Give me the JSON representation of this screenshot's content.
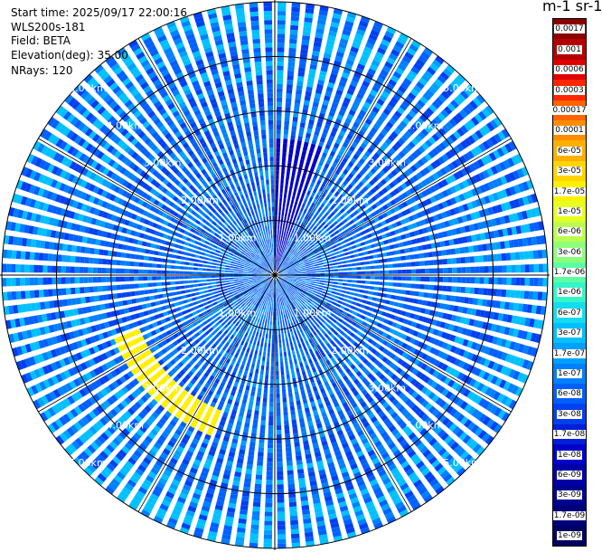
{
  "header": {
    "start_time": "Start time: 2025/09/17 22:00:16",
    "instrument": "WLS200s-181",
    "field": "Field: BETA",
    "elevation": "Elevation(deg): 35.00",
    "nrays": "NRays: 120"
  },
  "colorbar": {
    "title": "m-1 sr-1",
    "labels": [
      "0.0017",
      "0.001",
      "0.0006",
      "0.0003",
      "0.00017",
      "0.0001",
      "6e-05",
      "3e-05",
      "1.7e-05",
      "1e-05",
      "6e-06",
      "3e-06",
      "1.7e-06",
      "1e-06",
      "6e-07",
      "3e-07",
      "1.7e-07",
      "1e-07",
      "6e-08",
      "3e-08",
      "1.7e-08",
      "1e-08",
      "6e-09",
      "3e-09",
      "1.7e-09",
      "1e-09"
    ],
    "colors": [
      "#8a0000",
      "#b40000",
      "#e00000",
      "#ff2600",
      "#ff6400",
      "#ff8c00",
      "#ffb000",
      "#ffd400",
      "#fff000",
      "#e6ff20",
      "#baff50",
      "#8cff7a",
      "#5cffa2",
      "#34f5c8",
      "#14dcf0",
      "#00c0ff",
      "#00a0ff",
      "#0080ff",
      "#0060ff",
      "#0040f0",
      "#0020d8",
      "#0000c8",
      "#0000a8",
      "#000090",
      "#00007a",
      "#000060"
    ]
  },
  "chart_data": {
    "type": "heatmap",
    "projection": "polar-ppi",
    "nrays": 120,
    "range_rings_km": [
      1,
      2,
      3,
      4,
      5
    ],
    "max_range_km": 5.0,
    "ring_labels": [
      "1.00km",
      "2.00km",
      "3.00km",
      "4.00km",
      "5.00km"
    ],
    "spokes_deg": [
      0,
      30,
      60,
      90,
      120,
      150,
      180,
      210,
      240,
      270,
      300,
      330
    ],
    "colorbar_range": [
      1e-09,
      0.0017
    ],
    "colormap": "jet",
    "features": [
      {
        "description": "high backscatter arc",
        "azimuth_deg": [
          200,
          250
        ],
        "range_km": [
          2.7,
          3.2
        ],
        "value": 1.7e-05
      },
      {
        "description": "elevated near-range sector",
        "azimuth_deg": [
          0,
          20
        ],
        "range_km": [
          0.1,
          2.5
        ],
        "value": 1e-08
      }
    ],
    "dominant_value": 6e-08
  }
}
